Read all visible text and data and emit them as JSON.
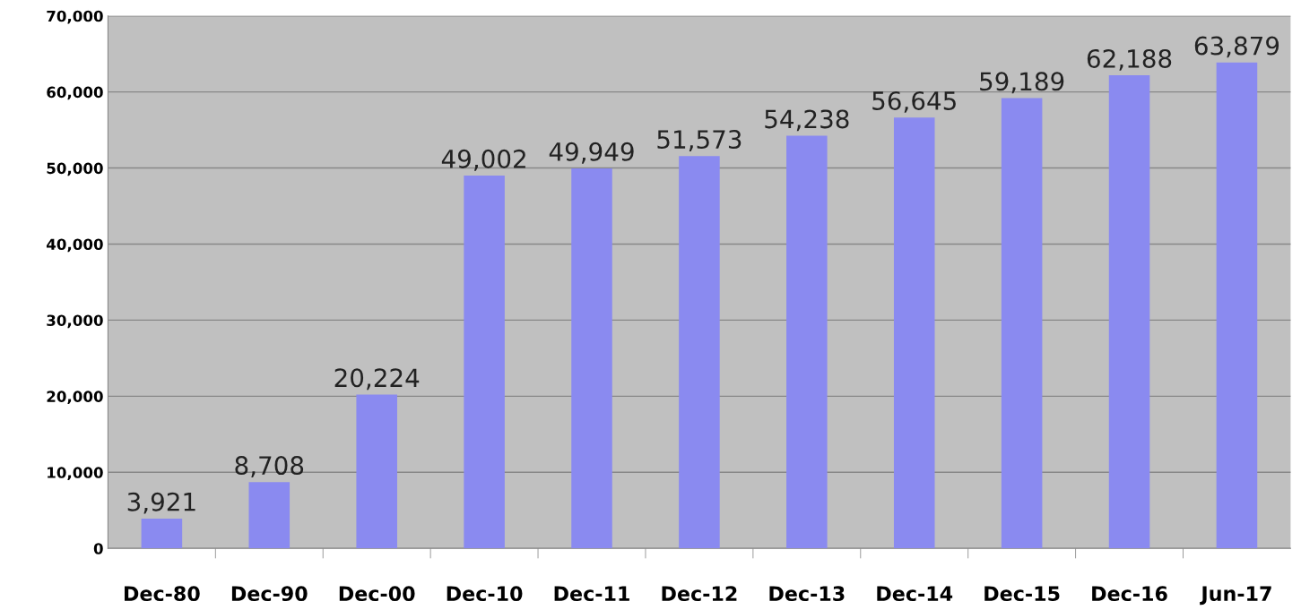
{
  "chart_data": {
    "type": "bar",
    "categories": [
      "Dec-80",
      "Dec-90",
      "Dec-00",
      "Dec-10",
      "Dec-11",
      "Dec-12",
      "Dec-13",
      "Dec-14",
      "Dec-15",
      "Dec-16",
      "Jun-17"
    ],
    "values": [
      3921,
      8708,
      20224,
      49002,
      49949,
      51573,
      54238,
      56645,
      59189,
      62188,
      63879
    ],
    "color": "#8a8af0",
    "value_labels": [
      "3,921",
      "8,708",
      "20,224",
      "49,002",
      "49,949",
      "51,573",
      "54,238",
      "56,645",
      "59,189",
      "62,188",
      "63,879"
    ],
    "ylim": [
      0,
      70000
    ],
    "yticks": [
      {
        "value": 0,
        "label": "0"
      },
      {
        "value": 10000,
        "label": "10,000"
      },
      {
        "value": 20000,
        "label": "20,000"
      },
      {
        "value": 30000,
        "label": "30,000"
      },
      {
        "value": 40000,
        "label": "40,000"
      },
      {
        "value": 50000,
        "label": "50,000"
      },
      {
        "value": 60000,
        "label": "60,000"
      },
      {
        "value": 70000,
        "label": "70,000"
      }
    ],
    "grid": "y"
  }
}
